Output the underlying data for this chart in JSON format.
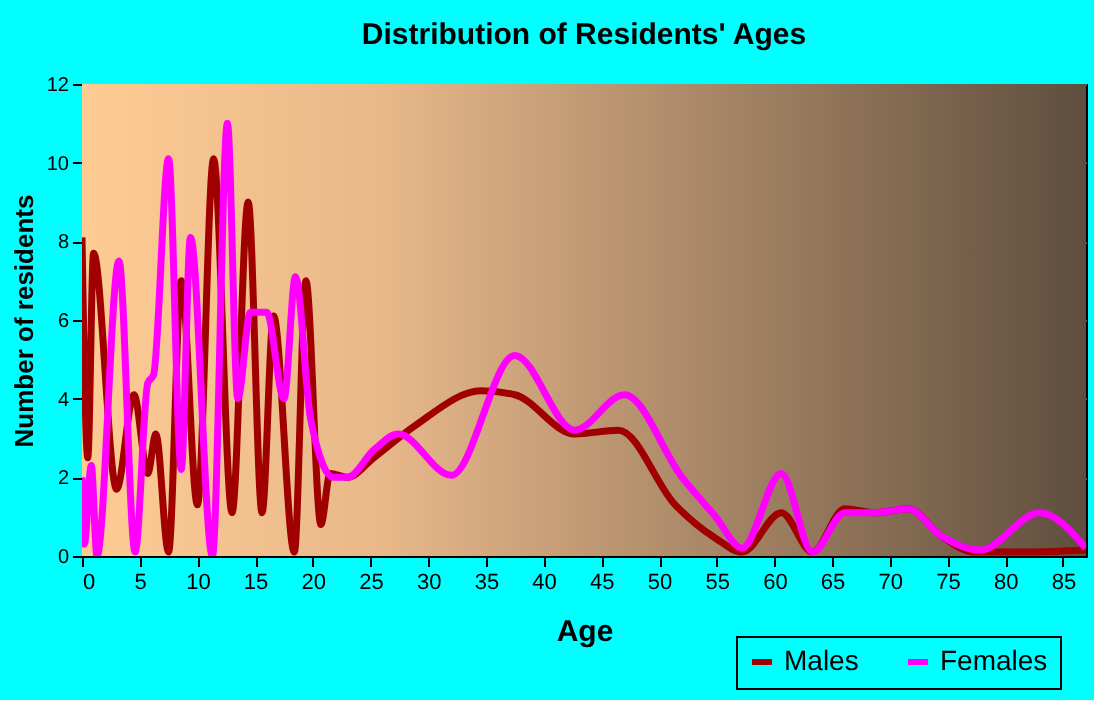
{
  "chart_data": {
    "type": "line",
    "title": "Distribution of Residents' Ages",
    "xlabel": "Age",
    "ylabel": "Number of residents",
    "xlim": [
      0,
      87
    ],
    "ylim": [
      0,
      12
    ],
    "xticks": [
      0,
      5,
      10,
      15,
      20,
      25,
      30,
      35,
      40,
      45,
      50,
      55,
      60,
      65,
      70,
      75,
      80,
      85
    ],
    "yticks": [
      0,
      2,
      4,
      6,
      8,
      10,
      12
    ],
    "grid": true,
    "legend": "bottom right",
    "line_style": "solid",
    "series": [
      {
        "name": "Males",
        "color": "#a00000",
        "x": [
          0,
          0.5,
          1,
          3,
          4.5,
          5.7,
          6.4,
          7.5,
          8.6,
          10,
          11.4,
          13,
          14.4,
          15.6,
          16.6,
          18.4,
          19.4,
          20.7,
          21.5,
          23,
          25.3,
          28.8,
          34.6,
          37.5,
          42.7,
          46.5,
          51.4,
          54.9,
          57.2,
          60.6,
          63.3,
          66.1,
          68.7,
          71.6,
          74.5,
          77.3,
          82,
          87
        ],
        "values": [
          8.1,
          2.5,
          7.7,
          1.7,
          4.1,
          2.1,
          3.1,
          0.1,
          7,
          1.3,
          10.1,
          1.1,
          9,
          1.1,
          6.1,
          0.1,
          7,
          0.8,
          2.1,
          2,
          2.5,
          3.3,
          4.2,
          4.1,
          3.1,
          3.2,
          1.3,
          0.45,
          0.1,
          1.1,
          0.1,
          1.2,
          1.1,
          1.2,
          0.5,
          0.1,
          0.1,
          0.15
        ]
      },
      {
        "name": "Females",
        "color": "#ff00ff",
        "x": [
          0,
          0.2,
          0.8,
          1.3,
          3.2,
          4.6,
          5.7,
          6.2,
          7.5,
          8.6,
          9.4,
          11.3,
          12.6,
          13.5,
          14.6,
          16,
          17.5,
          18.5,
          19.8,
          21.8,
          23,
          25.3,
          27.4,
          32,
          37.5,
          42.7,
          47,
          52,
          54.9,
          57.2,
          60.6,
          63.3,
          66.1,
          68.7,
          71.6,
          74.5,
          77.8,
          83,
          87
        ],
        "values": [
          2,
          0.3,
          2.3,
          0,
          7.5,
          0.1,
          4.4,
          4.6,
          10.1,
          2.2,
          8.1,
          0,
          11,
          4,
          6.2,
          6.2,
          4,
          7.1,
          3.5,
          2,
          2,
          2.7,
          3.1,
          2.05,
          5.1,
          3.2,
          4.1,
          2,
          1,
          0.2,
          2.1,
          0.1,
          1.1,
          1.1,
          1.2,
          0.5,
          0.15,
          1.1,
          0.2
        ]
      }
    ]
  }
}
